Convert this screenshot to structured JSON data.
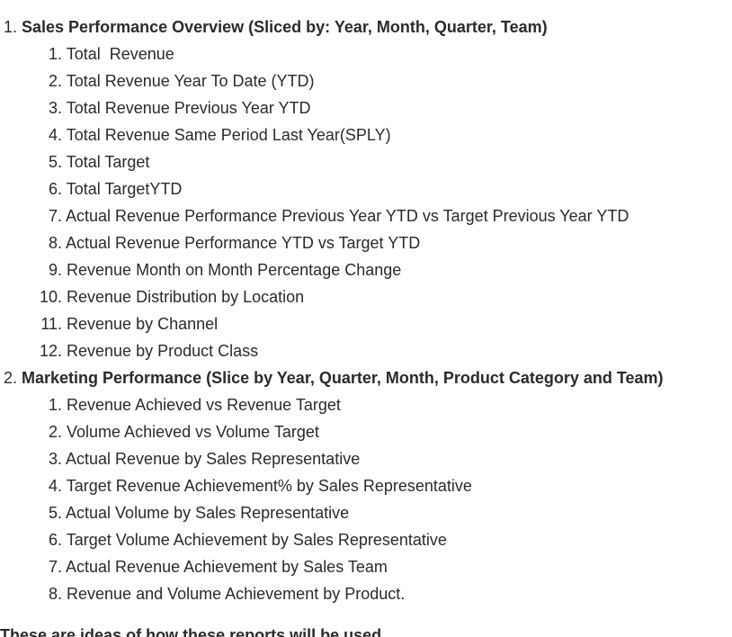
{
  "sections": [
    {
      "number": "1.",
      "title": "Sales Performance Overview (Sliced by: Year, Month, Quarter, Team)",
      "items": [
        {
          "number": "1.",
          "label": "Total  Revenue"
        },
        {
          "number": "2.",
          "label": "Total Revenue Year To Date (YTD)"
        },
        {
          "number": "3.",
          "label": "Total Revenue Previous Year YTD"
        },
        {
          "number": "4.",
          "label": "Total Revenue Same Period Last Year(SPLY)"
        },
        {
          "number": "5.",
          "label": "Total Target"
        },
        {
          "number": "6.",
          "label": "Total TargetYTD"
        },
        {
          "number": "7.",
          "label": "Actual Revenue Performance Previous Year YTD vs Target Previous Year YTD"
        },
        {
          "number": "8.",
          "label": "Actual Revenue Performance YTD vs Target YTD"
        },
        {
          "number": "9.",
          "label": "Revenue Month on Month Percentage Change"
        },
        {
          "number": "10.",
          "label": "Revenue Distribution by Location"
        },
        {
          "number": "11.",
          "label": "Revenue by Channel"
        },
        {
          "number": "12.",
          "label": "Revenue by Product Class"
        }
      ]
    },
    {
      "number": "2.",
      "title": "Marketing Performance (Slice by Year, Quarter, Month, Product Category and Team)",
      "items": [
        {
          "number": "1.",
          "label": "Revenue Achieved vs Revenue Target"
        },
        {
          "number": "2.",
          "label": "Volume Achieved vs Volume Target"
        },
        {
          "number": "3.",
          "label": "Actual Revenue by Sales Representative"
        },
        {
          "number": "4.",
          "label": "Target Revenue Achievement% by Sales Representative"
        },
        {
          "number": "5.",
          "label": "Actual Volume by Sales Representative"
        },
        {
          "number": "6.",
          "label": "Target Volume Achievement by Sales Representative"
        },
        {
          "number": "7.",
          "label": "Actual Revenue Achievement by Sales Team"
        },
        {
          "number": "8.",
          "label": "Revenue and Volume Achievement by Product."
        }
      ]
    }
  ],
  "trailing_text": "These are ideas of how these reports will be used"
}
